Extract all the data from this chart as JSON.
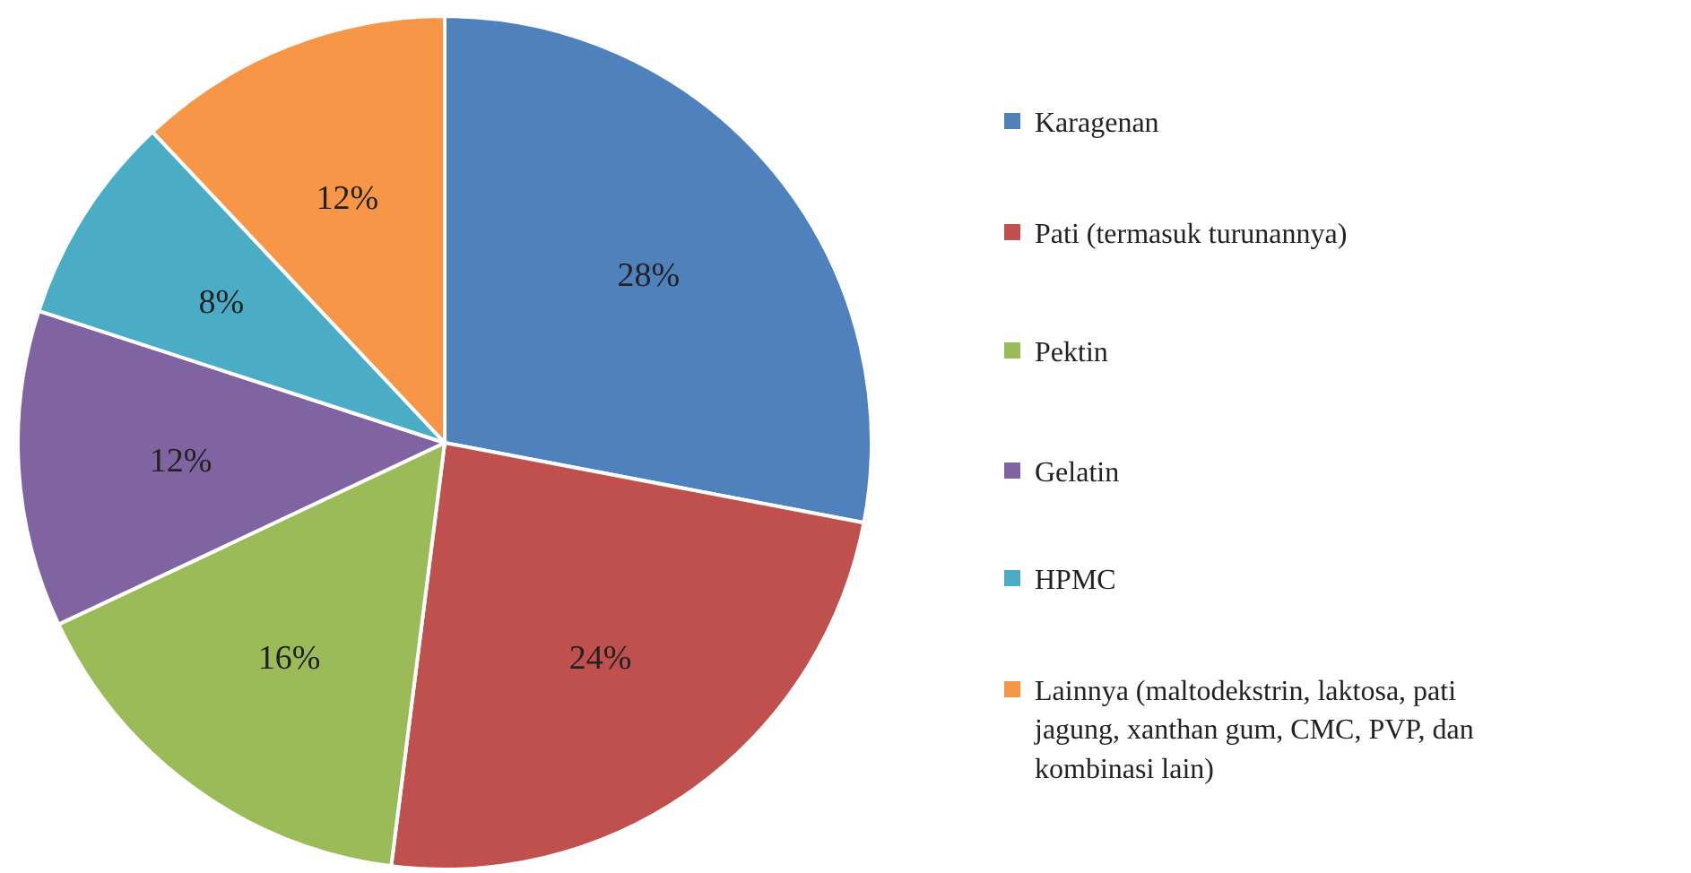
{
  "chart_data": {
    "type": "pie",
    "categories": [
      "Karagenan",
      "Pati (termasuk turunannya)",
      "Pektin",
      "Gelatin",
      "HPMC",
      "Lainnya (maltodekstrin, laktosa, pati jagung, xanthan gum, CMC, PVP, dan kombinasi lain)"
    ],
    "values": [
      28,
      24,
      16,
      12,
      8,
      12
    ],
    "colors": [
      "#4f81bd",
      "#c0504d",
      "#9bbb59",
      "#8064a2",
      "#4bacc6",
      "#f79646"
    ],
    "value_labels": [
      "28%",
      "24%",
      "16%",
      "12%",
      "8%",
      "12%"
    ],
    "legend": "right"
  }
}
